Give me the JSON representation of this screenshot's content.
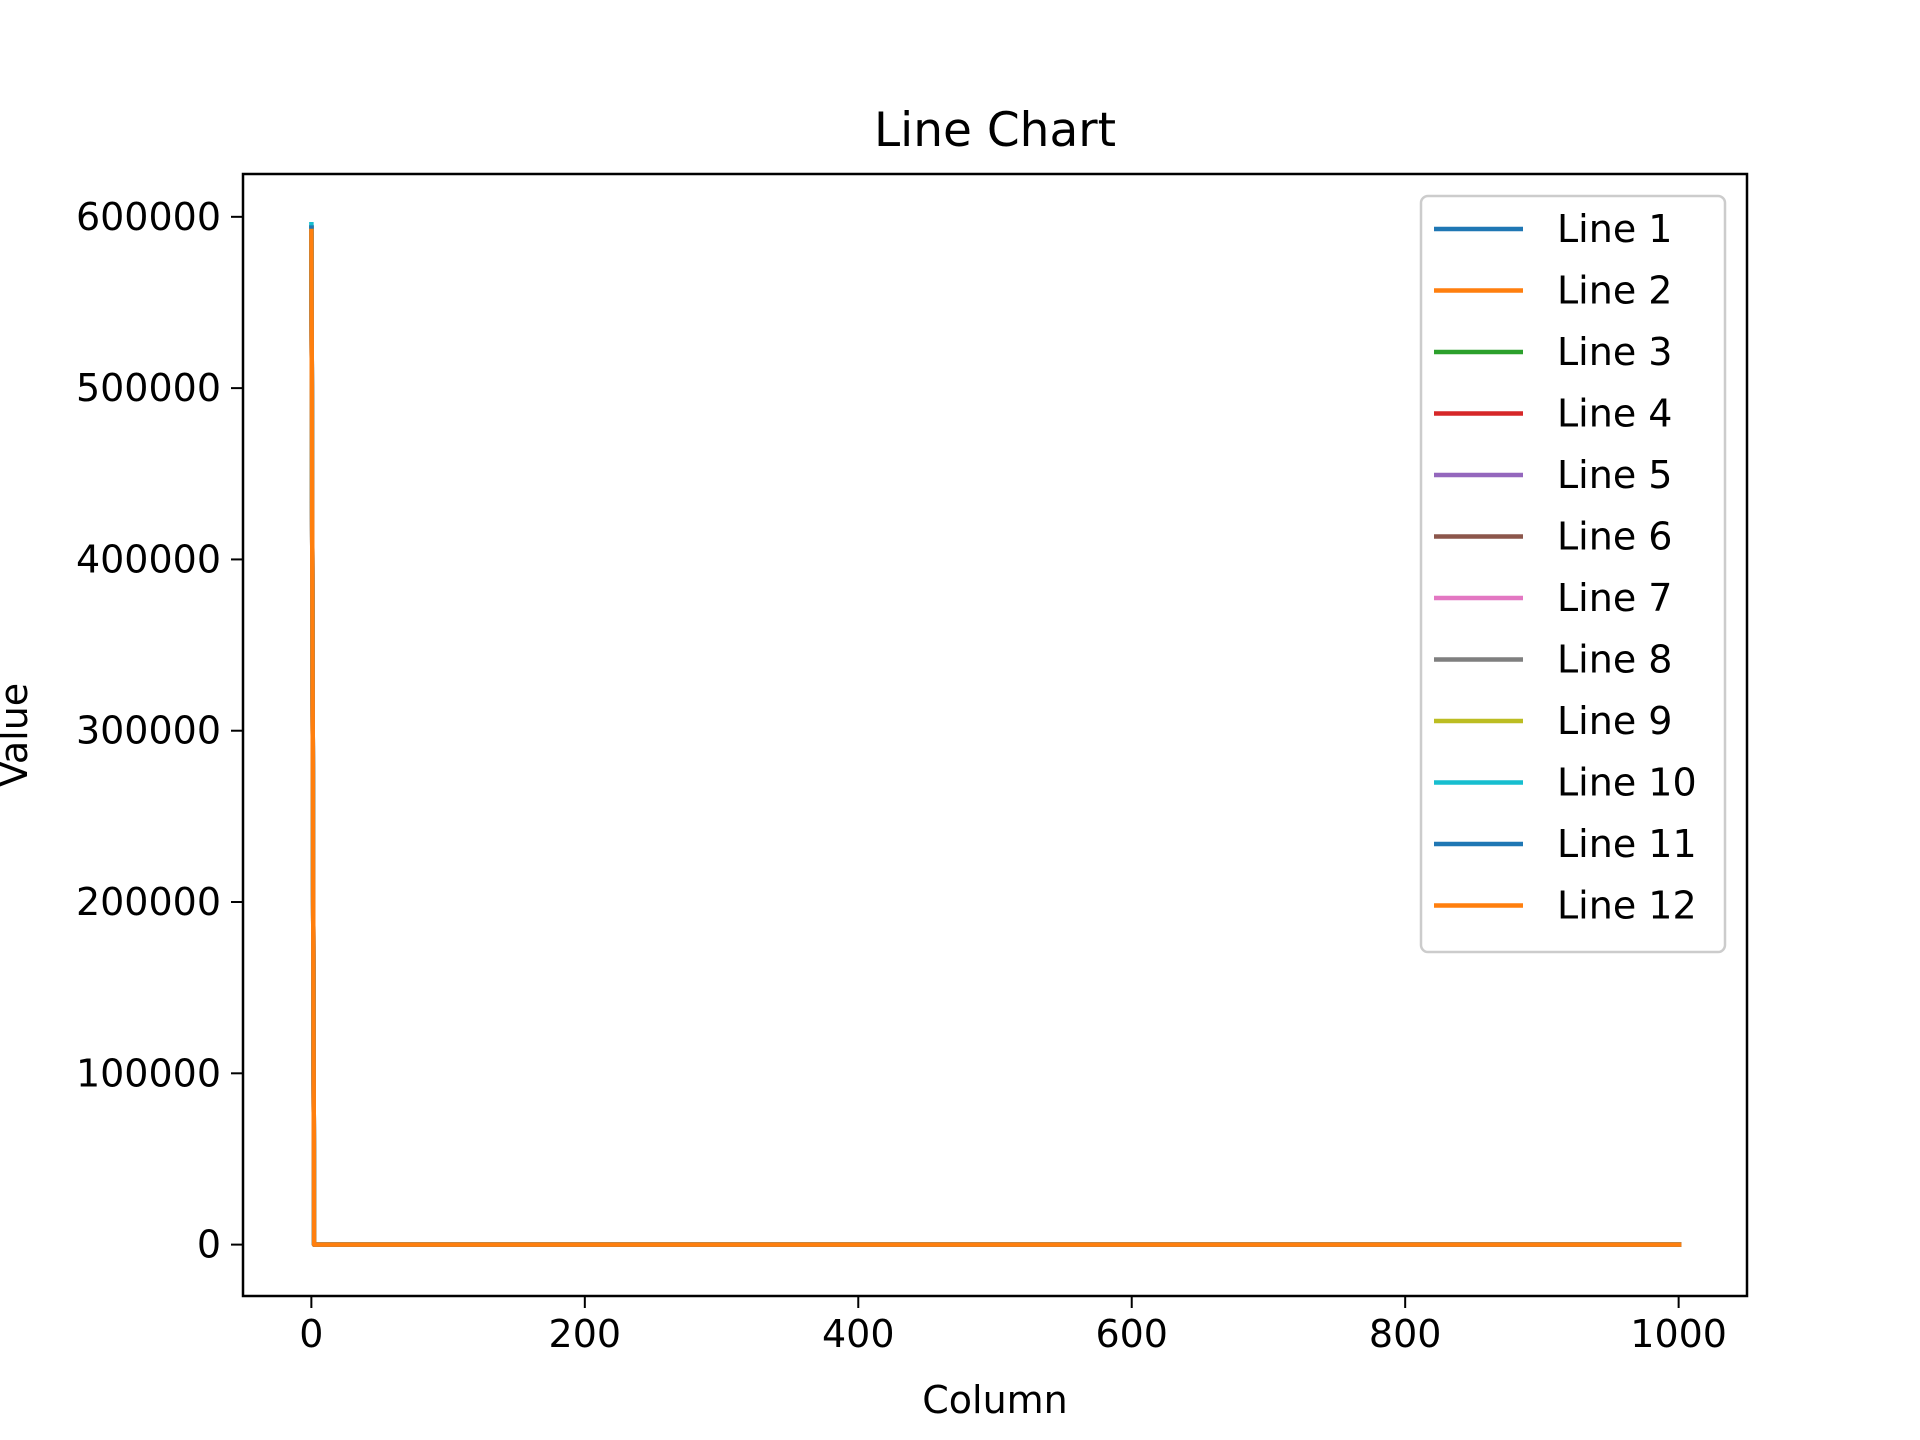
{
  "chart_data": {
    "type": "line",
    "title": "Line Chart",
    "xlabel": "Column",
    "ylabel": "Value",
    "xlim": [
      -50,
      1050
    ],
    "ylim": [
      -30000,
      625000
    ],
    "xticks": [
      0,
      200,
      400,
      600,
      800,
      1000
    ],
    "yticks": [
      0,
      100000,
      200000,
      300000,
      400000,
      500000,
      600000
    ],
    "xtick_labels": [
      "0",
      "200",
      "400",
      "600",
      "800",
      "1000"
    ],
    "ytick_labels": [
      "0",
      "100000",
      "200000",
      "300000",
      "400000",
      "500000",
      "600000"
    ],
    "grid": false,
    "legend_position": "top-right",
    "series": [
      {
        "name": "Line 1",
        "color": "#1f77b4",
        "x": [
          0,
          2,
          1002
        ],
        "y": [
          595000,
          0,
          0
        ]
      },
      {
        "name": "Line 2",
        "color": "#ff7f0e",
        "x": [
          0,
          2,
          1002
        ],
        "y": [
          595000,
          0,
          0
        ]
      },
      {
        "name": "Line 3",
        "color": "#2ca02c",
        "x": [
          0,
          2,
          1002
        ],
        "y": [
          595000,
          0,
          0
        ]
      },
      {
        "name": "Line 4",
        "color": "#d62728",
        "x": [
          0,
          2,
          1002
        ],
        "y": [
          595000,
          0,
          0
        ]
      },
      {
        "name": "Line 5",
        "color": "#9467bd",
        "x": [
          0,
          2,
          1002
        ],
        "y": [
          595000,
          0,
          0
        ]
      },
      {
        "name": "Line 6",
        "color": "#8c564b",
        "x": [
          0,
          2,
          1002
        ],
        "y": [
          595000,
          0,
          0
        ]
      },
      {
        "name": "Line 7",
        "color": "#e377c2",
        "x": [
          0,
          2,
          1002
        ],
        "y": [
          595000,
          0,
          0
        ]
      },
      {
        "name": "Line 8",
        "color": "#7f7f7f",
        "x": [
          0,
          2,
          1002
        ],
        "y": [
          595000,
          0,
          0
        ]
      },
      {
        "name": "Line 9",
        "color": "#bcbd22",
        "x": [
          0,
          2,
          1002
        ],
        "y": [
          595000,
          0,
          0
        ]
      },
      {
        "name": "Line 10",
        "color": "#17becf",
        "x": [
          0,
          2,
          1002
        ],
        "y": [
          597000,
          0,
          0
        ]
      },
      {
        "name": "Line 11",
        "color": "#1f77b4",
        "x": [
          0,
          2,
          1002
        ],
        "y": [
          595000,
          0,
          0
        ]
      },
      {
        "name": "Line 12",
        "color": "#ff7f0e",
        "x": [
          0,
          2,
          1002
        ],
        "y": [
          593000,
          0,
          0
        ]
      }
    ]
  }
}
